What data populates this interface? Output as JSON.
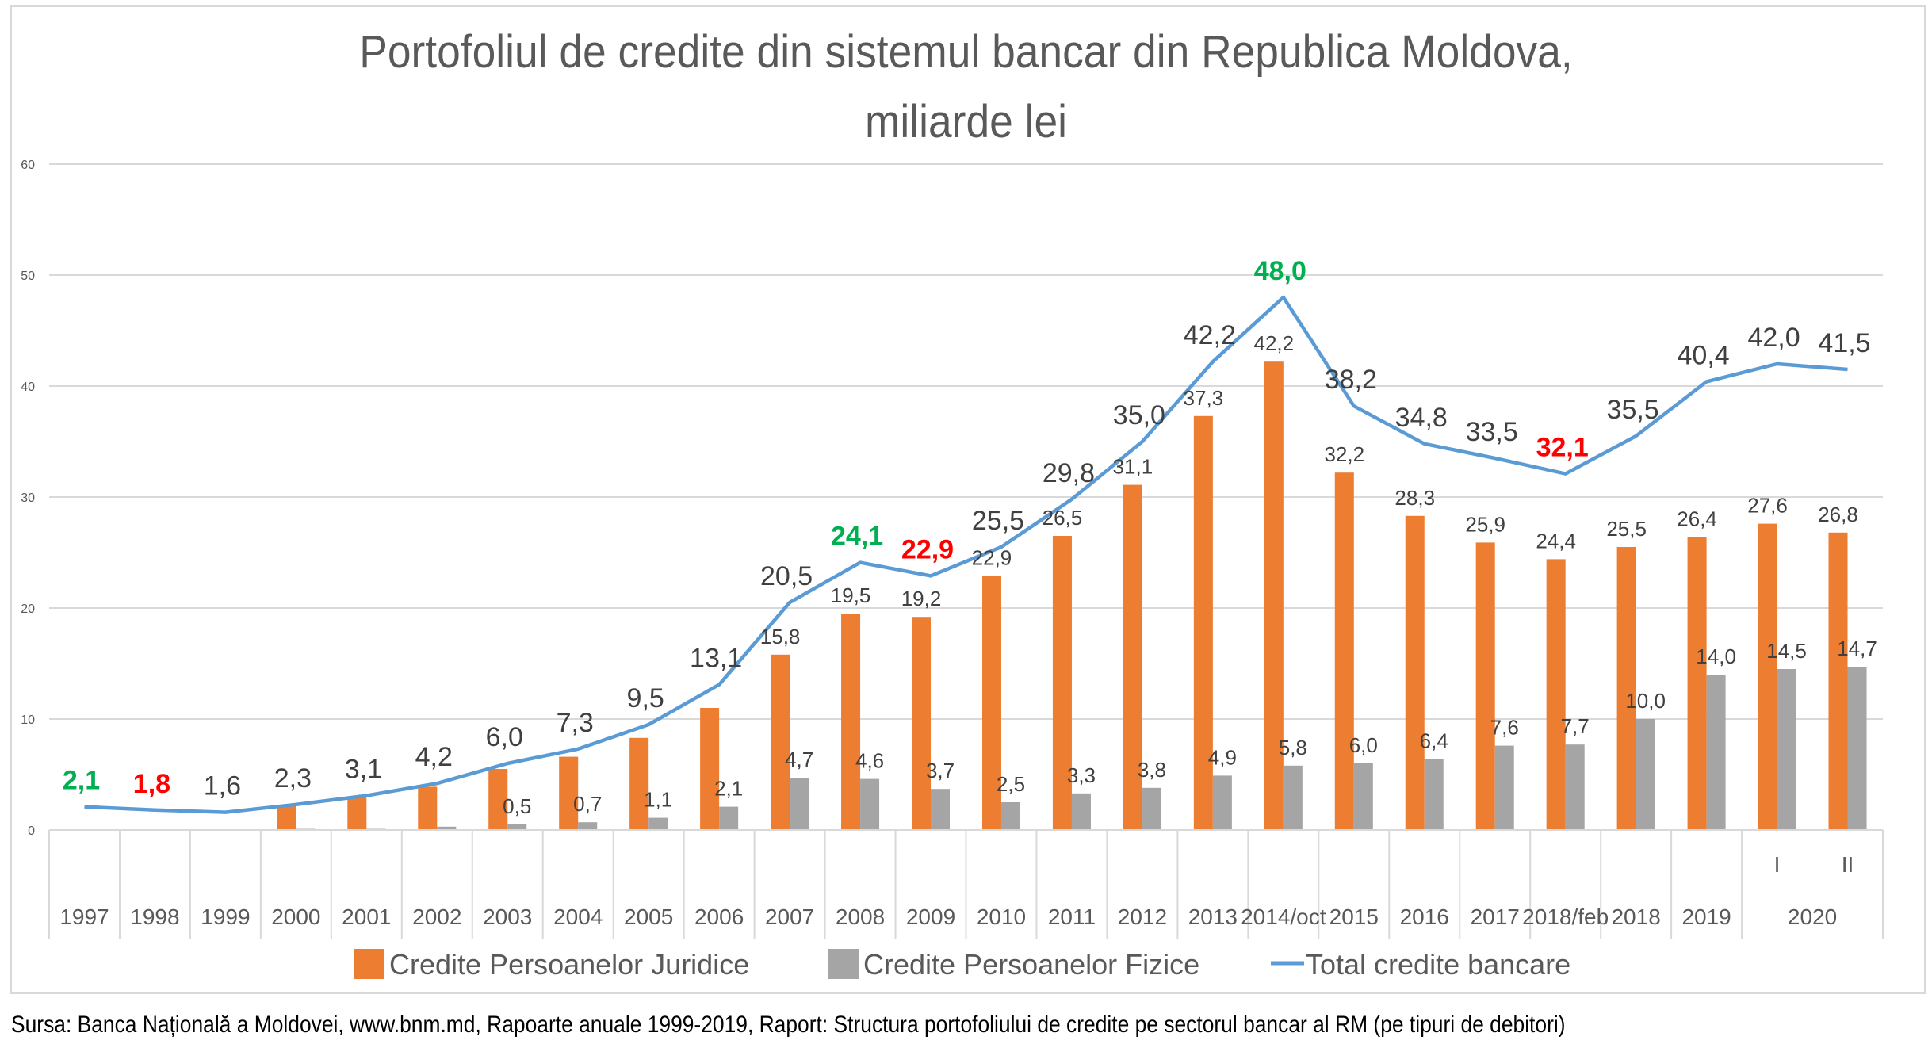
{
  "chart_data": {
    "type": "bar",
    "title": "Portofoliul de credite din sistemul bancar din Republica Moldova,",
    "subtitle": "miliarde lei",
    "xlabel": "",
    "ylabel": "",
    "ylim": [
      0,
      60
    ],
    "yticks": [
      0,
      10,
      20,
      30,
      40,
      50,
      60
    ],
    "grid": true,
    "legend_position": "bottom",
    "categories": [
      "1997",
      "1998",
      "1999",
      "2000",
      "2001",
      "2002",
      "2003",
      "2004",
      "2005",
      "2006",
      "2007",
      "2008",
      "2009",
      "2010",
      "2011",
      "2012",
      "2013",
      "2014/oct",
      "2015",
      "2016",
      "2017",
      "2018/feb",
      "2018",
      "2019",
      "I",
      "II"
    ],
    "category_group": {
      "label": "2020",
      "members": [
        "I",
        "II"
      ]
    },
    "series": [
      {
        "name": "Credite Persoanelor Juridice",
        "type": "bar",
        "color": "#ed7d31",
        "values": [
          null,
          null,
          null,
          2.2,
          3.0,
          3.9,
          5.5,
          6.6,
          8.3,
          11.0,
          15.8,
          19.5,
          19.2,
          22.9,
          26.5,
          31.1,
          37.3,
          42.2,
          32.2,
          28.3,
          25.9,
          24.4,
          25.5,
          26.4,
          27.6,
          26.8
        ],
        "labels": [
          "",
          "",
          "",
          "",
          "",
          "",
          "",
          "",
          "",
          "",
          "15,8",
          "19,5",
          "19,2",
          "22,9",
          "26,5",
          "31,1",
          "37,3",
          "42,2",
          "32,2",
          "28,3",
          "25,9",
          "24,4",
          "25,5",
          "26,4",
          "27,6",
          "26,8"
        ]
      },
      {
        "name": "Credite Persoanelor Fizice",
        "type": "bar",
        "color": "#a5a5a5",
        "values": [
          null,
          null,
          null,
          0.1,
          0.1,
          0.3,
          0.5,
          0.7,
          1.1,
          2.1,
          4.7,
          4.6,
          3.7,
          2.5,
          3.3,
          3.8,
          4.9,
          5.8,
          6.0,
          6.4,
          7.6,
          7.7,
          10.0,
          14.0,
          14.5,
          14.7
        ],
        "labels": [
          "",
          "",
          "",
          "",
          "",
          "",
          "0,5",
          "0,7",
          "1,1",
          "2,1",
          "4,7",
          "4,6",
          "3,7",
          "2,5",
          "3,3",
          "3,8",
          "4,9",
          "5,8",
          "6,0",
          "6,4",
          "7,6",
          "7,7",
          "10,0",
          "14,0",
          "14,5",
          "14,7"
        ]
      },
      {
        "name": "Total credite bancare",
        "type": "line",
        "color": "#5b9bd5",
        "values": [
          2.1,
          1.8,
          1.6,
          2.3,
          3.1,
          4.2,
          6.0,
          7.3,
          9.5,
          13.1,
          20.5,
          24.1,
          22.9,
          25.5,
          29.8,
          35.0,
          42.2,
          48.0,
          38.2,
          34.8,
          33.5,
          32.1,
          35.5,
          40.4,
          42.0,
          41.5
        ],
        "labels": [
          "2,1",
          "1,8",
          "1,6",
          "2,3",
          "3,1",
          "4,2",
          "6,0",
          "7,3",
          "9,5",
          "13,1",
          "20,5",
          "24,1",
          "22,9",
          "25,5",
          "29,8",
          "35,0",
          "42,2",
          "48,0",
          "38,2",
          "34,8",
          "33,5",
          "32,1",
          "35,5",
          "40,4",
          "42,0",
          "41,5"
        ],
        "label_highlights": {
          "0": "#00b050",
          "1": "#ff0000",
          "11": "#00b050",
          "12": "#ff0000",
          "17": "#00b050",
          "21": "#ff0000"
        }
      }
    ]
  },
  "footer": {
    "source": "Sursa: Banca Națională a Moldovei, www.bnm.md, Rapoarte anuale 1999-2019, Raport: Structura portofoliului de credite pe sectorul bancar al RM (pe tipuri de debitori)"
  },
  "colors": {
    "title_text": "#595959",
    "label_text": "#404040",
    "grid": "#d9d9d9",
    "highlight_high": "#00b050",
    "highlight_low": "#ff0000"
  }
}
